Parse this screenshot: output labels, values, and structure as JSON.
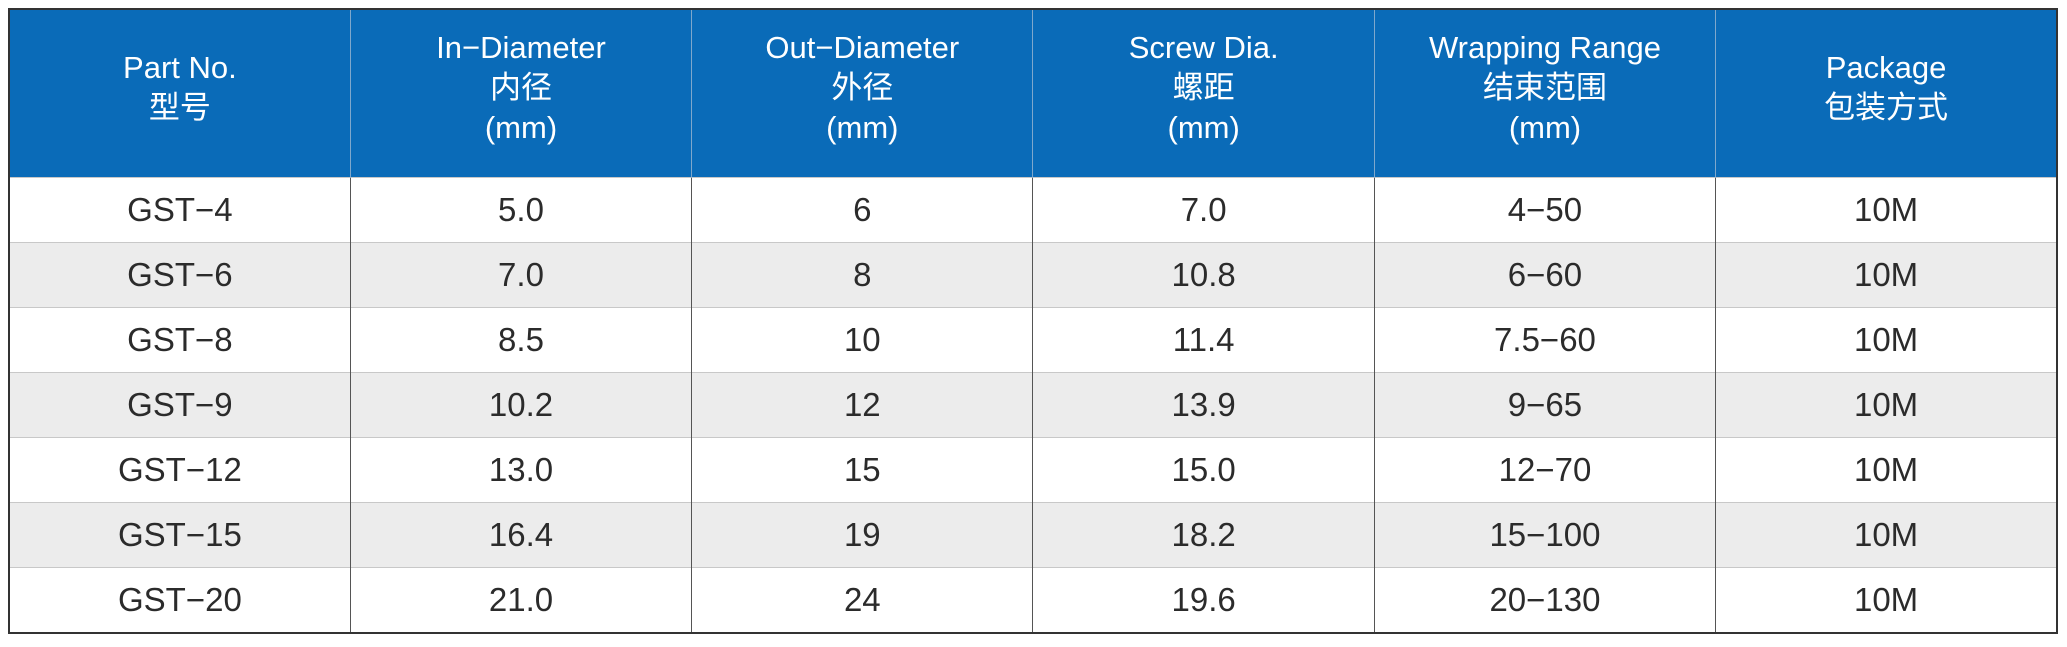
{
  "headers": [
    {
      "en": "Part No.",
      "cn": "型号",
      "unit": ""
    },
    {
      "en": "In−Diameter",
      "cn": "内径",
      "unit": "(mm)"
    },
    {
      "en": "Out−Diameter",
      "cn": "外径",
      "unit": "(mm)"
    },
    {
      "en": "Screw Dia.",
      "cn": "螺距",
      "unit": "(mm)"
    },
    {
      "en": "Wrapping Range",
      "cn": "结束范围",
      "unit": "(mm)"
    },
    {
      "en": "Package",
      "cn": "包装方式",
      "unit": ""
    }
  ],
  "rows": [
    [
      "GST−4",
      "5.0",
      "6",
      "7.0",
      "4−50",
      "10M"
    ],
    [
      "GST−6",
      "7.0",
      "8",
      "10.8",
      "6−60",
      "10M"
    ],
    [
      "GST−8",
      "8.5",
      "10",
      "11.4",
      "7.5−60",
      "10M"
    ],
    [
      "GST−9",
      "10.2",
      "12",
      "13.9",
      "9−65",
      "10M"
    ],
    [
      "GST−12",
      "13.0",
      "15",
      "15.0",
      "12−70",
      "10M"
    ],
    [
      "GST−15",
      "16.4",
      "19",
      "18.2",
      "15−100",
      "10M"
    ],
    [
      "GST−20",
      "21.0",
      "24",
      "19.6",
      "20−130",
      "10M"
    ]
  ],
  "colors": {
    "header_bg": "#0a6bb8",
    "header_text": "#ffffff",
    "row_alt_bg": "#ececec"
  }
}
